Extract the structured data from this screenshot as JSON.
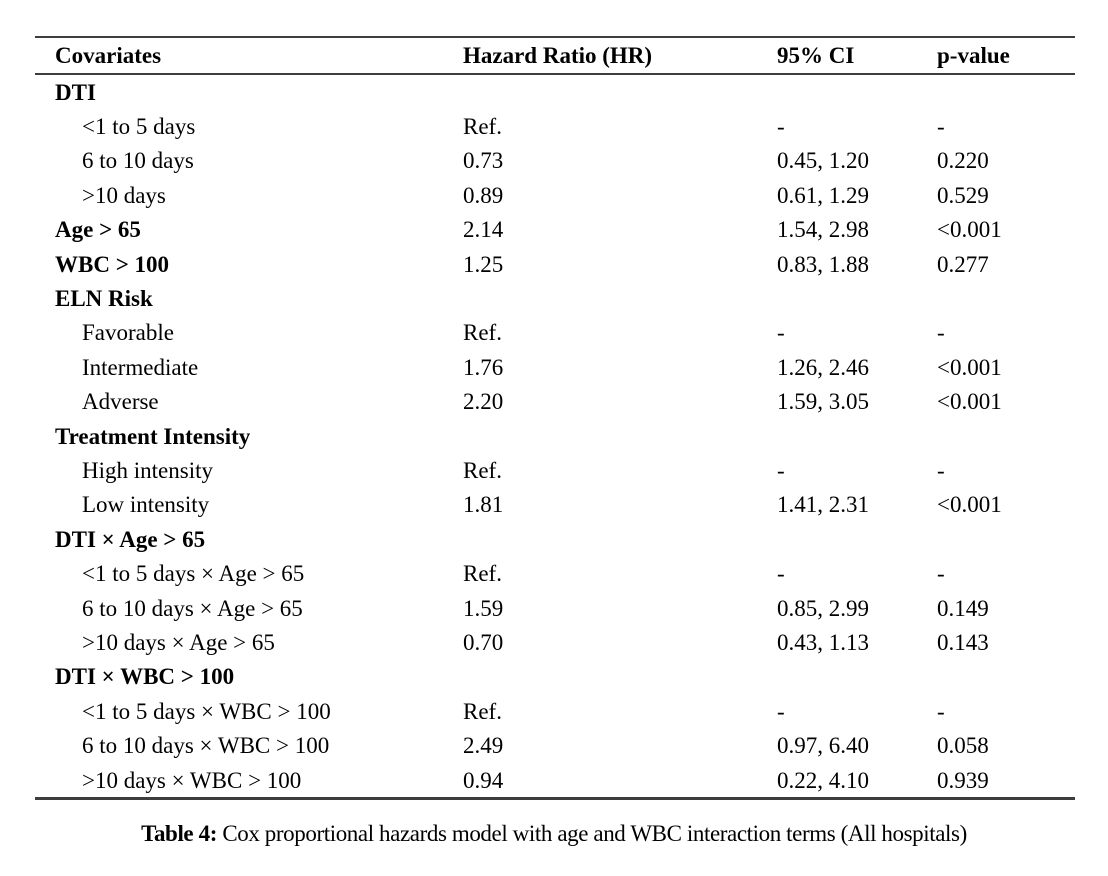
{
  "table": {
    "columns": [
      "Covariates",
      "Hazard Ratio (HR)",
      "95% CI",
      "p-value"
    ],
    "rows": [
      {
        "label": "DTI",
        "bold": true,
        "indent": false,
        "hr": "",
        "ci": "",
        "p": ""
      },
      {
        "label": "<1 to 5 days",
        "bold": false,
        "indent": true,
        "hr": "Ref.",
        "ci": "-",
        "p": "-"
      },
      {
        "label": "6 to 10 days",
        "bold": false,
        "indent": true,
        "hr": "0.73",
        "ci": "0.45, 1.20",
        "p": "0.220"
      },
      {
        "label": ">10 days",
        "bold": false,
        "indent": true,
        "hr": "0.89",
        "ci": "0.61, 1.29",
        "p": "0.529"
      },
      {
        "label": "Age > 65",
        "bold": true,
        "indent": false,
        "hr": "2.14",
        "ci": "1.54, 2.98",
        "p": "<0.001"
      },
      {
        "label": "WBC > 100",
        "bold": true,
        "indent": false,
        "hr": "1.25",
        "ci": "0.83, 1.88",
        "p": "0.277"
      },
      {
        "label": "ELN Risk",
        "bold": true,
        "indent": false,
        "hr": "",
        "ci": "",
        "p": ""
      },
      {
        "label": "Favorable",
        "bold": false,
        "indent": true,
        "hr": "Ref.",
        "ci": "-",
        "p": "-"
      },
      {
        "label": "Intermediate",
        "bold": false,
        "indent": true,
        "hr": "1.76",
        "ci": "1.26, 2.46",
        "p": "<0.001"
      },
      {
        "label": "Adverse",
        "bold": false,
        "indent": true,
        "hr": "2.20",
        "ci": "1.59, 3.05",
        "p": "<0.001"
      },
      {
        "label": "Treatment Intensity",
        "bold": true,
        "indent": false,
        "hr": "",
        "ci": "",
        "p": ""
      },
      {
        "label": "High intensity",
        "bold": false,
        "indent": true,
        "hr": "Ref.",
        "ci": "-",
        "p": "-"
      },
      {
        "label": "Low intensity",
        "bold": false,
        "indent": true,
        "hr": "1.81",
        "ci": "1.41, 2.31",
        "p": "<0.001"
      },
      {
        "label": "DTI × Age > 65",
        "bold": true,
        "indent": false,
        "hr": "",
        "ci": "",
        "p": ""
      },
      {
        "label": "<1 to 5 days × Age > 65",
        "bold": false,
        "indent": true,
        "hr": "Ref.",
        "ci": "-",
        "p": "-"
      },
      {
        "label": "6 to 10 days × Age > 65",
        "bold": false,
        "indent": true,
        "hr": "1.59",
        "ci": "0.85, 2.99",
        "p": "0.149"
      },
      {
        "label": ">10 days × Age > 65",
        "bold": false,
        "indent": true,
        "hr": "0.70",
        "ci": "0.43, 1.13",
        "p": "0.143"
      },
      {
        "label": "DTI × WBC > 100",
        "bold": true,
        "indent": false,
        "hr": "",
        "ci": "",
        "p": ""
      },
      {
        "label": "<1 to 5 days × WBC > 100",
        "bold": false,
        "indent": true,
        "hr": "Ref.",
        "ci": "-",
        "p": "-"
      },
      {
        "label": "6 to 10 days × WBC > 100",
        "bold": false,
        "indent": true,
        "hr": "2.49",
        "ci": "0.97, 6.40",
        "p": "0.058"
      },
      {
        "label": ">10 days × WBC > 100",
        "bold": false,
        "indent": true,
        "hr": "0.94",
        "ci": "0.22, 4.10",
        "p": "0.939"
      }
    ]
  },
  "caption": {
    "label": "Table 4:",
    "text": " Cox proportional hazards model with age and WBC interaction terms (All hospitals)"
  },
  "colors": {
    "rule": "#3d3d3d",
    "text": "#000000",
    "background": "#ffffff"
  }
}
